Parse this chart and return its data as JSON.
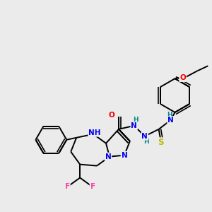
{
  "bg_color": "#ebebeb",
  "bond_color": "#000000",
  "bond_width": 1.4,
  "atom_colors": {
    "N": "#0000ee",
    "O": "#ee0000",
    "S": "#bbbb00",
    "F": "#ff44aa",
    "H": "#008888",
    "C": "#000000"
  },
  "figsize": [
    3.0,
    3.0
  ],
  "dpi": 100
}
